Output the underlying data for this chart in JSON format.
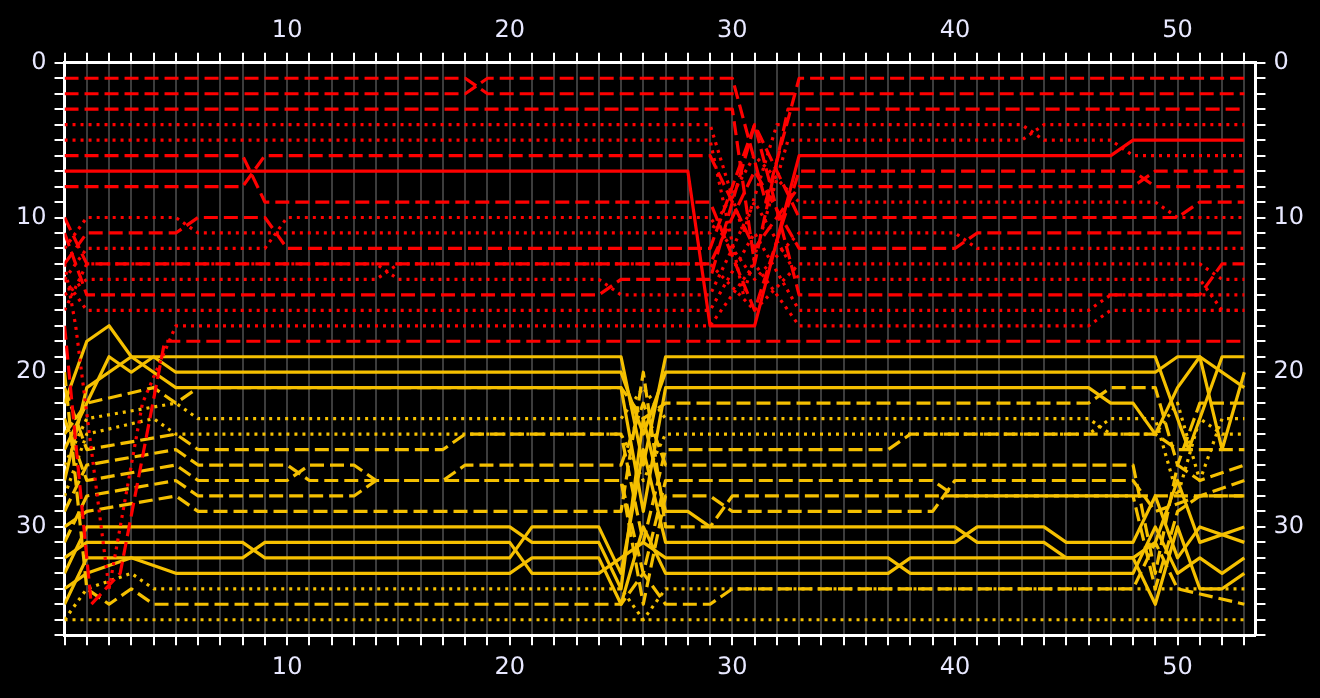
{
  "chart_data": {
    "type": "line",
    "grid": "x",
    "legend": false,
    "xlim": [
      0,
      53.5
    ],
    "x2lim": [
      0,
      53.5
    ],
    "ylim": [
      37,
      0
    ],
    "y2lim": [
      37,
      0
    ],
    "xticks": [
      {
        "value": 0,
        "label": null
      },
      {
        "value": 1,
        "label": null
      },
      {
        "value": 2,
        "label": null
      },
      {
        "value": 3,
        "label": null
      },
      {
        "value": 4,
        "label": null
      },
      {
        "value": 5,
        "label": null
      },
      {
        "value": 6,
        "label": null
      },
      {
        "value": 7,
        "label": null
      },
      {
        "value": 8,
        "label": null
      },
      {
        "value": 9,
        "label": null
      },
      10,
      {
        "value": 11,
        "label": null
      },
      {
        "value": 12,
        "label": null
      },
      {
        "value": 13,
        "label": null
      },
      {
        "value": 14,
        "label": null
      },
      {
        "value": 15,
        "label": null
      },
      {
        "value": 16,
        "label": null
      },
      {
        "value": 17,
        "label": null
      },
      {
        "value": 18,
        "label": null
      },
      {
        "value": 19,
        "label": null
      },
      20,
      {
        "value": 21,
        "label": null
      },
      {
        "value": 22,
        "label": null
      },
      {
        "value": 23,
        "label": null
      },
      {
        "value": 24,
        "label": null
      },
      {
        "value": 25,
        "label": null
      },
      {
        "value": 26,
        "label": null
      },
      {
        "value": 27,
        "label": null
      },
      {
        "value": 28,
        "label": null
      },
      {
        "value": 29,
        "label": null
      },
      30,
      {
        "value": 31,
        "label": null
      },
      {
        "value": 32,
        "label": null
      },
      {
        "value": 33,
        "label": null
      },
      {
        "value": 34,
        "label": null
      },
      {
        "value": 35,
        "label": null
      },
      {
        "value": 36,
        "label": null
      },
      {
        "value": 37,
        "label": null
      },
      {
        "value": 38,
        "label": null
      },
      {
        "value": 39,
        "label": null
      },
      40,
      {
        "value": 41,
        "label": null
      },
      {
        "value": 42,
        "label": null
      },
      {
        "value": 43,
        "label": null
      },
      {
        "value": 44,
        "label": null
      },
      {
        "value": 45,
        "label": null
      },
      {
        "value": 46,
        "label": null
      },
      {
        "value": 47,
        "label": null
      },
      {
        "value": 48,
        "label": null
      },
      {
        "value": 49,
        "label": null
      },
      50,
      {
        "value": 51,
        "label": null
      },
      {
        "value": 52,
        "label": null
      },
      {
        "value": 53,
        "label": null
      }
    ],
    "x2ticks": [
      {
        "value": 0,
        "label": null
      },
      {
        "value": 1,
        "label": null
      },
      {
        "value": 2,
        "label": null
      },
      {
        "value": 3,
        "label": null
      },
      {
        "value": 4,
        "label": null
      },
      {
        "value": 5,
        "label": null
      },
      {
        "value": 6,
        "label": null
      },
      {
        "value": 7,
        "label": null
      },
      {
        "value": 8,
        "label": null
      },
      {
        "value": 9,
        "label": null
      },
      10,
      {
        "value": 11,
        "label": null
      },
      {
        "value": 12,
        "label": null
      },
      {
        "value": 13,
        "label": null
      },
      {
        "value": 14,
        "label": null
      },
      {
        "value": 15,
        "label": null
      },
      {
        "value": 16,
        "label": null
      },
      {
        "value": 17,
        "label": null
      },
      {
        "value": 18,
        "label": null
      },
      {
        "value": 19,
        "label": null
      },
      20,
      {
        "value": 21,
        "label": null
      },
      {
        "value": 22,
        "label": null
      },
      {
        "value": 23,
        "label": null
      },
      {
        "value": 24,
        "label": null
      },
      {
        "value": 25,
        "label": null
      },
      {
        "value": 26,
        "label": null
      },
      {
        "value": 27,
        "label": null
      },
      {
        "value": 28,
        "label": null
      },
      {
        "value": 29,
        "label": null
      },
      30,
      {
        "value": 31,
        "label": null
      },
      {
        "value": 32,
        "label": null
      },
      {
        "value": 33,
        "label": null
      },
      {
        "value": 34,
        "label": null
      },
      {
        "value": 35,
        "label": null
      },
      {
        "value": 36,
        "label": null
      },
      {
        "value": 37,
        "label": null
      },
      {
        "value": 38,
        "label": null
      },
      {
        "value": 39,
        "label": null
      },
      40,
      {
        "value": 41,
        "label": null
      },
      {
        "value": 42,
        "label": null
      },
      {
        "value": 43,
        "label": null
      },
      {
        "value": 44,
        "label": null
      },
      {
        "value": 45,
        "label": null
      },
      {
        "value": 46,
        "label": null
      },
      {
        "value": 47,
        "label": null
      },
      {
        "value": 48,
        "label": null
      },
      {
        "value": 49,
        "label": null
      },
      50,
      {
        "value": 51,
        "label": null
      },
      {
        "value": 52,
        "label": null
      },
      {
        "value": 53,
        "label": null
      }
    ],
    "yticks": [
      0,
      {
        "value": 1,
        "label": null
      },
      {
        "value": 2,
        "label": null
      },
      {
        "value": 3,
        "label": null
      },
      {
        "value": 4,
        "label": null
      },
      {
        "value": 5,
        "label": null
      },
      {
        "value": 6,
        "label": null
      },
      {
        "value": 7,
        "label": null
      },
      {
        "value": 8,
        "label": null
      },
      {
        "value": 9,
        "label": null
      },
      10,
      {
        "value": 11,
        "label": null
      },
      {
        "value": 12,
        "label": null
      },
      {
        "value": 13,
        "label": null
      },
      {
        "value": 14,
        "label": null
      },
      {
        "value": 15,
        "label": null
      },
      {
        "value": 16,
        "label": null
      },
      {
        "value": 17,
        "label": null
      },
      {
        "value": 18,
        "label": null
      },
      {
        "value": 19,
        "label": null
      },
      20,
      {
        "value": 21,
        "label": null
      },
      {
        "value": 22,
        "label": null
      },
      {
        "value": 23,
        "label": null
      },
      {
        "value": 24,
        "label": null
      },
      {
        "value": 25,
        "label": null
      },
      {
        "value": 26,
        "label": null
      },
      {
        "value": 27,
        "label": null
      },
      {
        "value": 28,
        "label": null
      },
      {
        "value": 29,
        "label": null
      },
      30,
      {
        "value": 31,
        "label": null
      },
      {
        "value": 32,
        "label": null
      },
      {
        "value": 33,
        "label": null
      },
      {
        "value": 34,
        "label": null
      },
      {
        "value": 35,
        "label": null
      },
      {
        "value": 36,
        "label": null
      },
      {
        "value": 37,
        "label": null
      }
    ],
    "y2ticks": [
      0,
      {
        "value": 1,
        "label": null
      },
      {
        "value": 2,
        "label": null
      },
      {
        "value": 3,
        "label": null
      },
      {
        "value": 4,
        "label": null
      },
      {
        "value": 5,
        "label": null
      },
      {
        "value": 6,
        "label": null
      },
      {
        "value": 7,
        "label": null
      },
      {
        "value": 8,
        "label": null
      },
      {
        "value": 9,
        "label": null
      },
      10,
      {
        "value": 11,
        "label": null
      },
      {
        "value": 12,
        "label": null
      },
      {
        "value": 13,
        "label": null
      },
      {
        "value": 14,
        "label": null
      },
      {
        "value": 15,
        "label": null
      },
      {
        "value": 16,
        "label": null
      },
      {
        "value": 17,
        "label": null
      },
      {
        "value": 18,
        "label": null
      },
      {
        "value": 19,
        "label": null
      },
      20,
      {
        "value": 21,
        "label": null
      },
      {
        "value": 22,
        "label": null
      },
      {
        "value": 23,
        "label": null
      },
      {
        "value": 24,
        "label": null
      },
      {
        "value": 25,
        "label": null
      },
      {
        "value": 26,
        "label": null
      },
      {
        "value": 27,
        "label": null
      },
      {
        "value": 28,
        "label": null
      },
      {
        "value": 29,
        "label": null
      },
      30,
      {
        "value": 31,
        "label": null
      },
      {
        "value": 32,
        "label": null
      },
      {
        "value": 33,
        "label": null
      },
      {
        "value": 34,
        "label": null
      },
      {
        "value": 35,
        "label": null
      },
      {
        "value": 36,
        "label": null
      },
      {
        "value": 37,
        "label": null
      }
    ],
    "series": [
      {
        "color": "#ff0000",
        "line_style": "dashed",
        "x": [
          0,
          18,
          19,
          53
        ],
        "values": [
          1,
          1,
          2,
          2
        ]
      },
      {
        "color": "#ff0000",
        "line_style": "dashed",
        "x": [
          0,
          18,
          19,
          30,
          31.5,
          33,
          53
        ],
        "values": [
          2,
          2,
          1,
          1,
          9,
          1,
          1
        ]
      },
      {
        "color": "#ff0000",
        "line_style": "dashed",
        "x": [
          0,
          30,
          31,
          32.5,
          53
        ],
        "values": [
          3,
          3,
          13,
          3,
          3
        ]
      },
      {
        "color": "#ff0000",
        "line_style": "dotted",
        "x": [
          0,
          29,
          30.5,
          32,
          43,
          44,
          47,
          48,
          53
        ],
        "values": [
          4,
          4,
          11,
          4,
          4,
          5,
          5,
          6,
          6
        ]
      },
      {
        "color": "#ff0000",
        "line_style": "dotted",
        "x": [
          0,
          29,
          30.5,
          32.5,
          43,
          44,
          53
        ],
        "values": [
          5,
          5,
          15,
          5,
          5,
          4,
          4
        ]
      },
      {
        "color": "#ff0000",
        "line_style": "dashed",
        "x": [
          0,
          8,
          9,
          29,
          31,
          33,
          48,
          49,
          53
        ],
        "values": [
          6,
          6,
          9,
          9,
          16,
          7,
          7,
          8,
          8
        ]
      },
      {
        "color": "#ff0000",
        "line_style": "solid",
        "x": [
          0,
          28,
          29,
          31,
          33,
          47,
          48,
          53
        ],
        "values": [
          7,
          7,
          17,
          17,
          6,
          6,
          5,
          5
        ]
      },
      {
        "color": "#ff0000",
        "line_style": "dashed",
        "x": [
          0,
          8,
          9,
          29,
          31,
          33,
          48,
          49,
          53
        ],
        "values": [
          8,
          8,
          6,
          6,
          12,
          8,
          8,
          7,
          7
        ]
      },
      {
        "color": "#ff0000",
        "line_style": "dotted",
        "x": [
          0,
          1,
          5,
          6,
          29,
          31,
          33,
          49,
          50,
          53
        ],
        "values": [
          12,
          10,
          10,
          11,
          11,
          6,
          9,
          9,
          10,
          10
        ]
      },
      {
        "color": "#ff0000",
        "line_style": "dashed",
        "x": [
          0,
          1,
          5,
          6,
          9,
          10,
          29,
          31,
          33,
          50,
          51,
          53
        ],
        "values": [
          13,
          11,
          11,
          10,
          10,
          12,
          12,
          4,
          10,
          10,
          9,
          9
        ]
      },
      {
        "color": "#ff0000",
        "line_style": "dotted",
        "x": [
          0,
          1,
          9,
          10,
          29,
          31,
          33,
          40,
          41,
          53
        ],
        "values": [
          14,
          12,
          12,
          10,
          10,
          14,
          11,
          11,
          12,
          12
        ]
      },
      {
        "color": "#ff0000",
        "line_style": "dashed",
        "x": [
          0,
          1,
          29,
          31,
          33,
          40,
          41,
          53
        ],
        "values": [
          10,
          13,
          13,
          7,
          12,
          12,
          11,
          11
        ]
      },
      {
        "color": "#ff0000",
        "line_style": "dotted",
        "x": [
          0,
          1,
          14,
          15,
          29,
          31,
          33,
          51,
          52,
          53
        ],
        "values": [
          15,
          14,
          14,
          13,
          13,
          16,
          13,
          13,
          14,
          14
        ]
      },
      {
        "color": "#ff0000",
        "line_style": "dotted",
        "x": [
          0,
          1,
          14,
          15,
          24,
          25,
          29,
          31,
          33,
          51,
          52,
          53
        ],
        "values": [
          16,
          13,
          13,
          14,
          14,
          15,
          15,
          9,
          14,
          14,
          16,
          16
        ]
      },
      {
        "color": "#ff0000",
        "line_style": "dashed",
        "x": [
          0,
          1,
          24,
          25,
          29,
          31,
          33,
          51,
          52,
          53
        ],
        "values": [
          11,
          15,
          15,
          14,
          14,
          4,
          15,
          15,
          13,
          13
        ]
      },
      {
        "color": "#ff0000",
        "line_style": "dotted",
        "x": [
          0,
          1,
          29,
          31,
          33,
          46,
          47,
          51,
          52,
          53
        ],
        "values": [
          14,
          16,
          16,
          11,
          16,
          16,
          15,
          15,
          15,
          15
        ]
      },
      {
        "color": "#ff0000",
        "line_style": "dotted",
        "x": [
          0,
          0.5,
          2,
          3.5,
          5,
          29,
          31,
          33,
          46,
          47,
          53
        ],
        "values": [
          13,
          17,
          34,
          22,
          17,
          17,
          13,
          17,
          17,
          16,
          16
        ]
      },
      {
        "color": "#ff0000",
        "line_style": "dashed",
        "x": [
          0,
          1.2,
          2.5,
          4.5,
          53
        ],
        "values": [
          17,
          35,
          33,
          18,
          18
        ]
      },
      {
        "color": "#f5c000",
        "line_style": "solid",
        "x": [
          0,
          1,
          2,
          3,
          5,
          25,
          26,
          27,
          49,
          50.5,
          52,
          53
        ],
        "values": [
          22,
          18,
          17,
          19,
          19,
          19,
          26,
          19,
          19,
          25,
          19,
          19
        ]
      },
      {
        "color": "#f5c000",
        "line_style": "solid",
        "x": [
          0,
          2,
          3,
          4,
          5,
          25,
          26,
          27,
          49,
          50,
          51,
          52,
          53
        ],
        "values": [
          25,
          19,
          20,
          19,
          20,
          20,
          24,
          20,
          20,
          19,
          19,
          25,
          20
        ]
      },
      {
        "color": "#f5c000",
        "line_style": "solid",
        "x": [
          0,
          1,
          3,
          4,
          5,
          25,
          26,
          27,
          46,
          47,
          48,
          49,
          50,
          51,
          53
        ],
        "values": [
          27,
          21,
          19,
          20,
          21,
          21,
          29,
          21,
          21,
          22,
          22,
          24,
          21,
          19,
          21
        ]
      },
      {
        "color": "#f5c000",
        "line_style": "dashed",
        "x": [
          0,
          1,
          4,
          5,
          6,
          25,
          26,
          27,
          46,
          47,
          49,
          50,
          51,
          53
        ],
        "values": [
          24,
          22,
          21,
          22,
          21,
          21,
          23,
          22,
          22,
          21,
          21,
          26,
          22,
          22
        ]
      },
      {
        "color": "#f5c000",
        "line_style": "dotted",
        "x": [
          0,
          1,
          5,
          6,
          25,
          26,
          27,
          46,
          47,
          49,
          50,
          51,
          52,
          53
        ],
        "values": [
          26,
          23,
          22,
          23,
          23,
          21,
          23,
          23,
          24,
          24,
          22,
          27,
          23,
          23
        ]
      },
      {
        "color": "#f5c000",
        "line_style": "dotted",
        "x": [
          0,
          1,
          4,
          5,
          25,
          26,
          27,
          46,
          47,
          49,
          50,
          51,
          52,
          53
        ],
        "values": [
          28,
          24,
          23,
          24,
          24,
          27,
          24,
          24,
          23,
          23,
          28,
          23,
          24,
          24
        ]
      },
      {
        "color": "#f5c000",
        "line_style": "dashed",
        "x": [
          0,
          1,
          5,
          6,
          17,
          18,
          25,
          26,
          27,
          37,
          38,
          49,
          50,
          53
        ],
        "values": [
          21,
          25,
          24,
          25,
          25,
          24,
          24,
          31,
          25,
          25,
          24,
          24,
          25,
          25
        ]
      },
      {
        "color": "#f5c000",
        "line_style": "dashed",
        "x": [
          0,
          1,
          5,
          6,
          10,
          11,
          17,
          18,
          25,
          26,
          27,
          37,
          38,
          48,
          49,
          50,
          51,
          53
        ],
        "values": [
          29,
          26,
          25,
          26,
          26,
          27,
          27,
          26,
          26,
          22,
          26,
          26,
          26,
          26,
          33,
          26,
          27,
          26
        ]
      },
      {
        "color": "#f5c000",
        "line_style": "dashed",
        "x": [
          0,
          1,
          5,
          6,
          10,
          11,
          13,
          14,
          25,
          26,
          27,
          39,
          40,
          53
        ],
        "values": [
          23,
          27,
          26,
          27,
          27,
          26,
          26,
          27,
          27,
          33,
          27,
          27,
          28,
          28
        ]
      },
      {
        "color": "#f5c000",
        "line_style": "dashed",
        "x": [
          0,
          1,
          5,
          6,
          13,
          14,
          25,
          26,
          27,
          29,
          30,
          39,
          40,
          48,
          49,
          53
        ],
        "values": [
          31,
          28,
          27,
          28,
          28,
          27,
          27,
          35,
          28,
          28,
          29,
          29,
          27,
          27,
          29,
          27
        ]
      },
      {
        "color": "#f5c000",
        "line_style": "dashed",
        "x": [
          0,
          1,
          5,
          6,
          25,
          26,
          27,
          29,
          30,
          48,
          49,
          50,
          51,
          53
        ],
        "values": [
          30,
          29,
          28,
          29,
          29,
          20,
          30,
          30,
          28,
          28,
          34,
          29,
          28,
          28
        ]
      },
      {
        "color": "#f5c000",
        "line_style": "solid",
        "x": [
          0,
          1,
          5,
          20,
          21,
          24,
          25,
          26,
          27,
          28,
          29,
          40,
          41,
          44,
          45,
          48,
          49,
          50,
          51,
          53
        ],
        "values": [
          33,
          30,
          30,
          30,
          31,
          31,
          34,
          23,
          29,
          29,
          30,
          30,
          31,
          31,
          32,
          32,
          31,
          27,
          31,
          30
        ]
      },
      {
        "color": "#f5c000",
        "line_style": "solid",
        "x": [
          0,
          1,
          5,
          8,
          9,
          20,
          21,
          24,
          25,
          26,
          27,
          40,
          41,
          44,
          45,
          48,
          49,
          50,
          51,
          53
        ],
        "values": [
          32,
          31,
          31,
          31,
          32,
          32,
          30,
          30,
          33,
          25,
          31,
          31,
          30,
          30,
          31,
          31,
          28,
          32,
          30,
          31
        ]
      },
      {
        "color": "#f5c000",
        "line_style": "solid",
        "x": [
          0,
          1,
          5,
          8,
          9,
          20,
          21,
          24,
          25,
          26,
          27,
          37,
          38,
          48,
          49,
          50,
          51,
          52,
          53
        ],
        "values": [
          35,
          32,
          32,
          32,
          31,
          31,
          33,
          33,
          32,
          31,
          32,
          32,
          33,
          33,
          30,
          33,
          32,
          33,
          32
        ]
      },
      {
        "color": "#f5c000",
        "line_style": "solid",
        "x": [
          0,
          1,
          3,
          5,
          20,
          21,
          24,
          25,
          26,
          27,
          37,
          38,
          48,
          49,
          50,
          51,
          52,
          53
        ],
        "values": [
          34,
          33,
          32,
          33,
          33,
          32,
          32,
          35,
          30,
          33,
          33,
          32,
          32,
          35,
          30,
          34,
          34,
          33
        ]
      },
      {
        "color": "#f5c000",
        "line_style": "dotted",
        "x": [
          0,
          1,
          3,
          4,
          25,
          26,
          27,
          53
        ],
        "values": [
          36,
          34,
          33,
          34,
          34,
          36,
          34,
          34
        ]
      },
      {
        "color": "#f5c000",
        "line_style": "dashed",
        "x": [
          0,
          1,
          2,
          3,
          4,
          25,
          26,
          27,
          29,
          30,
          48,
          49,
          50,
          53
        ],
        "values": [
          20,
          34,
          35,
          34,
          35,
          35,
          33,
          35,
          35,
          34,
          34,
          31,
          34,
          35
        ]
      },
      {
        "color": "#f5c000",
        "line_style": "dotted",
        "x": [
          0,
          53
        ],
        "values": [
          36,
          36
        ]
      }
    ]
  }
}
